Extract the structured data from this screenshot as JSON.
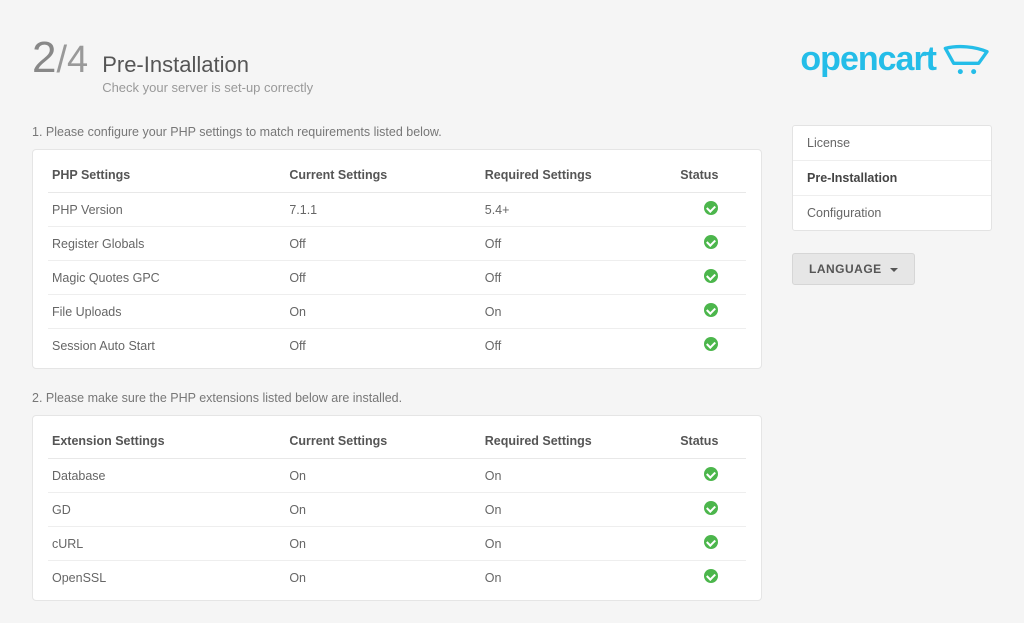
{
  "step": {
    "current": "2",
    "total": "/4"
  },
  "header": {
    "title": "Pre-Installation",
    "subtitle": "Check your server is set-up correctly"
  },
  "logo": {
    "text": "opencart",
    "color": "#24bde8"
  },
  "sections": [
    {
      "intro": "1. Please configure your PHP settings to match requirements listed below.",
      "columns": [
        "PHP Settings",
        "Current Settings",
        "Required Settings",
        "Status"
      ],
      "rows": [
        {
          "name": "PHP Version",
          "current": "7.1.1",
          "required": "5.4+",
          "ok": true
        },
        {
          "name": "Register Globals",
          "current": "Off",
          "required": "Off",
          "ok": true
        },
        {
          "name": "Magic Quotes GPC",
          "current": "Off",
          "required": "Off",
          "ok": true
        },
        {
          "name": "File Uploads",
          "current": "On",
          "required": "On",
          "ok": true
        },
        {
          "name": "Session Auto Start",
          "current": "Off",
          "required": "Off",
          "ok": true
        }
      ]
    },
    {
      "intro": "2. Please make sure the PHP extensions listed below are installed.",
      "columns": [
        "Extension Settings",
        "Current Settings",
        "Required Settings",
        "Status"
      ],
      "rows": [
        {
          "name": "Database",
          "current": "On",
          "required": "On",
          "ok": true
        },
        {
          "name": "GD",
          "current": "On",
          "required": "On",
          "ok": true
        },
        {
          "name": "cURL",
          "current": "On",
          "required": "On",
          "ok": true
        },
        {
          "name": "OpenSSL",
          "current": "On",
          "required": "On",
          "ok": true
        }
      ]
    }
  ],
  "sidebar": {
    "items": [
      {
        "label": "License",
        "active": false
      },
      {
        "label": "Pre-Installation",
        "active": true
      },
      {
        "label": "Configuration",
        "active": false
      }
    ],
    "language_label": "LANGUAGE"
  },
  "colors": {
    "background": "#f5f5f5",
    "panel_bg": "#ffffff",
    "border": "#e5e5e5",
    "text": "#555555",
    "muted": "#999999",
    "status_ok": "#4cb64c",
    "logo": "#24bde8"
  },
  "column_widths": [
    "34%",
    "28%",
    "28%",
    "10%"
  ]
}
